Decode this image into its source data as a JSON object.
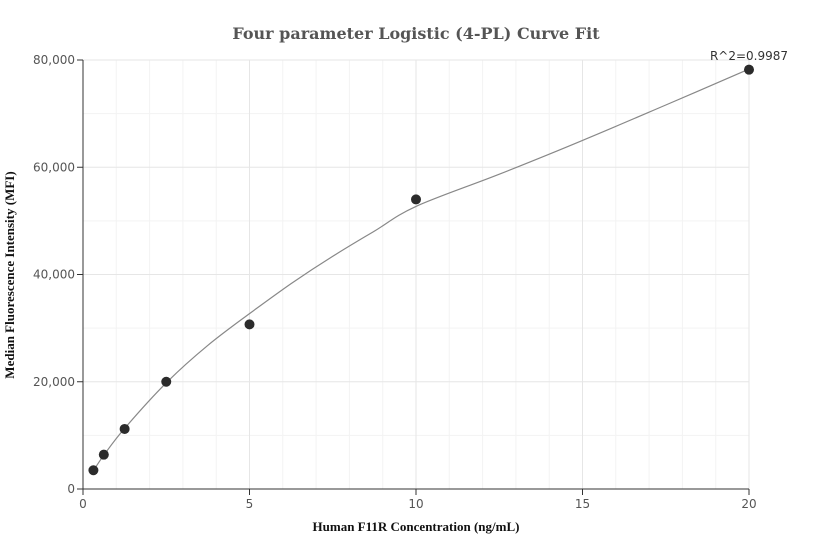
{
  "chart_data": {
    "type": "scatter",
    "title": "Four parameter Logistic (4-PL) Curve Fit",
    "xlabel": "Human F11R Concentration (ng/mL)",
    "ylabel": "Median Fluorescence Intensity (MFI)",
    "xlim": [
      0,
      20
    ],
    "ylim": [
      0,
      80000
    ],
    "x_ticks": [
      0,
      5,
      10,
      15,
      20
    ],
    "y_ticks": [
      0,
      20000,
      40000,
      60000,
      80000
    ],
    "x_tick_labels": [
      "0",
      "5",
      "10",
      "15",
      "20"
    ],
    "y_tick_labels": [
      "0",
      "20,000",
      "40,000",
      "60,000",
      "80,000"
    ],
    "grid": true,
    "legend": "none",
    "annotation": "R^2=0.9987",
    "series": [
      {
        "values": [
          {
            "x": 0.3125,
            "y": 3500
          },
          {
            "x": 0.625,
            "y": 6400
          },
          {
            "x": 1.25,
            "y": 11200
          },
          {
            "x": 2.5,
            "y": 20000
          },
          {
            "x": 5,
            "y": 30700
          },
          {
            "x": 10,
            "y": 54000
          },
          {
            "x": 20,
            "y": 78200
          }
        ]
      }
    ],
    "fit_curve": {
      "x": [
        0.3125,
        0.625,
        1.25,
        2.5,
        3.75,
        5,
        6.25,
        7.5,
        8.75,
        10,
        12.5,
        15,
        17.5,
        20
      ],
      "y": [
        3400,
        6300,
        11300,
        19800,
        26800,
        32700,
        38300,
        43400,
        48100,
        52700,
        58700,
        65000,
        71600,
        78300
      ]
    },
    "colors": {
      "points": "#2b2b2b",
      "curve": "#888888",
      "grid": "#e6e6e6",
      "axis": "#333333"
    }
  }
}
